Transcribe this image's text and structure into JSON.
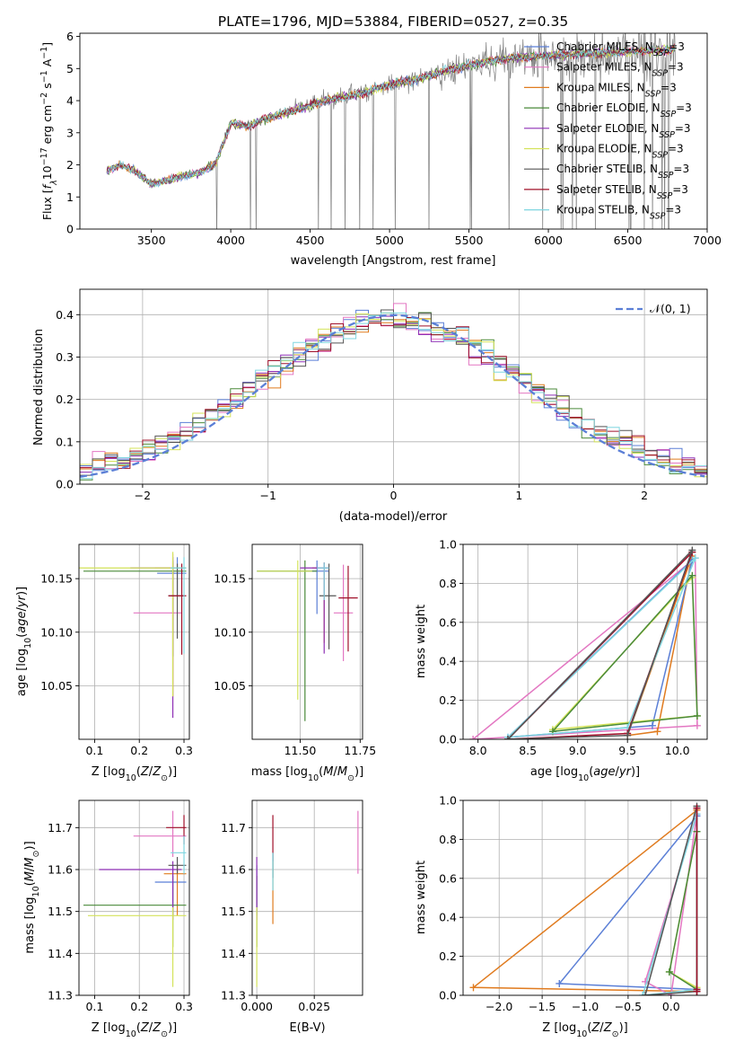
{
  "title": "PLATE=1796, MJD=53884, FIBERID=0527, z=0.35",
  "colors": {
    "chabrier_miles": "#5b7fd6",
    "salpeter_miles": "#e377c2",
    "kroupa_miles": "#e07b1f",
    "chabrier_elodie": "#4a8a3a",
    "salpeter_elodie": "#8e2fb5",
    "kroupa_elodie": "#d4e35a",
    "chabrier_stelib": "#555555",
    "salpeter_stelib": "#a0102a",
    "kroupa_stelib": "#7fd6e0",
    "normal": "#5b7fd6",
    "grid": "#b0b0b0"
  },
  "chart_data": [
    {
      "id": "spectrum",
      "type": "line",
      "xlabel": "wavelength [Angstrom, rest frame]",
      "ylabel_parts": [
        "Flux [",
        "f",
        "λ",
        "10",
        "−17",
        " erg cm",
        "−2",
        " s",
        "−1",
        " A",
        "−1",
        "]"
      ],
      "xlim": [
        3050,
        7000
      ],
      "ylim": [
        0,
        6.1
      ],
      "xticks": [
        3500,
        4000,
        4500,
        5000,
        5500,
        6000,
        6500,
        7000
      ],
      "yticks": [
        0,
        1,
        2,
        3,
        4,
        5,
        6
      ],
      "grid": false,
      "legend_position": "top-right",
      "series": [
        {
          "name": "Chabrier MILES",
          "sub": "SSP",
          "suffix": "=3",
          "color": "#5b7fd6"
        },
        {
          "name": "Salpeter MILES",
          "sub": "SSP",
          "suffix": "=3",
          "color": "#e377c2"
        },
        {
          "name": "Kroupa MILES",
          "sub": "SSP",
          "suffix": "=3",
          "color": "#e07b1f"
        },
        {
          "name": "Chabrier ELODIE",
          "sub": "SSP",
          "suffix": "=3",
          "color": "#4a8a3a"
        },
        {
          "name": "Salpeter ELODIE",
          "sub": "SSP",
          "suffix": "=3",
          "color": "#8e2fb5"
        },
        {
          "name": "Kroupa ELODIE",
          "sub": "SSP",
          "suffix": "=3",
          "color": "#d4e35a"
        },
        {
          "name": "Chabrier STELIB",
          "sub": "SSP",
          "suffix": "=3",
          "color": "#555555"
        },
        {
          "name": "Salpeter STELIB",
          "sub": "SSP",
          "suffix": "=3",
          "color": "#a0102a"
        },
        {
          "name": "Kroupa STELIB",
          "sub": "SSP",
          "suffix": "=3",
          "color": "#7fd6e0"
        }
      ],
      "continuum": {
        "x": [
          3220,
          3300,
          3400,
          3500,
          3600,
          3700,
          3800,
          3900,
          4000,
          4100,
          4200,
          4400,
          4600,
          4800,
          5000,
          5200,
          5400,
          5600,
          5800,
          6000,
          6200,
          6400,
          6600,
          6800
        ],
        "y": [
          1.85,
          2.0,
          1.8,
          1.4,
          1.5,
          1.65,
          1.75,
          2.0,
          3.3,
          3.2,
          3.4,
          3.7,
          4.0,
          4.2,
          4.5,
          4.7,
          5.0,
          5.2,
          5.35,
          5.4,
          5.45,
          5.5,
          5.55,
          5.6
        ]
      },
      "data_noise": {
        "x_range": [
          3220,
          6800
        ],
        "sigma_min": 0.15,
        "sigma_max": 1.3
      }
    },
    {
      "id": "residuals",
      "type": "histogram",
      "xlabel": "(data-model)/error",
      "ylabel": "Normed distribution",
      "xlim": [
        -2.5,
        2.5
      ],
      "ylim": [
        0,
        0.46
      ],
      "xticks": [
        -2,
        -1,
        0,
        1,
        2
      ],
      "xtick_labels": [
        "−2",
        "−1",
        "0",
        "1",
        "2"
      ],
      "yticks": [
        0.0,
        0.1,
        0.2,
        0.3,
        0.4
      ],
      "ytick_labels": [
        "0.0",
        "0.1",
        "0.2",
        "0.3",
        "0.4"
      ],
      "grid": true,
      "legend_position": "top-right",
      "legend": [
        "𝒩(0, 1)"
      ],
      "bin_width": 0.1
    },
    {
      "id": "age_vs_Z",
      "type": "errorbar",
      "xlabel": "Z [log10(Z/Z⊙)]",
      "ylabel": "age [log10(age/yr)]",
      "xlim": [
        0.065,
        0.312
      ],
      "ylim": [
        10.0,
        10.182
      ],
      "xticks": [
        0.1,
        0.2,
        0.3
      ],
      "xtick_labels": [
        "0.1",
        "0.2",
        "0.3"
      ],
      "yticks": [
        10.05,
        10.1,
        10.15
      ],
      "ytick_labels": [
        "10.05",
        "10.10",
        "10.15"
      ],
      "grid": true,
      "points": [
        {
          "series": "Chabrier MILES",
          "x": 0.285,
          "y": 10.155,
          "xerr": [
            0.045,
            0.02
          ],
          "yerr": [
            0.02,
            0.015
          ]
        },
        {
          "series": "Salpeter MILES",
          "x": 0.275,
          "y": 10.118,
          "xerr": [
            0.088,
            0.02
          ],
          "yerr": [
            0.04,
            0.055
          ]
        },
        {
          "series": "Kroupa MILES",
          "x": 0.275,
          "y": 10.16,
          "xerr": [
            0.04,
            0.03
          ],
          "yerr": [
            0.12,
            0.005
          ]
        },
        {
          "series": "Chabrier ELODIE",
          "x": 0.275,
          "y": 10.157,
          "xerr": [
            0.2,
            0.03
          ],
          "yerr": [
            0.08,
            0.01
          ]
        },
        {
          "series": "Salpeter ELODIE",
          "x": 0.275,
          "y": 10.16,
          "xerr": [
            0.095,
            0.03
          ],
          "yerr": [
            0.14,
            0.01
          ]
        },
        {
          "series": "Kroupa ELODIE",
          "x": 0.275,
          "y": 10.16,
          "xerr": [
            0.21,
            0.03
          ],
          "yerr": [
            0.12,
            0.015
          ]
        },
        {
          "series": "Chabrier STELIB",
          "x": 0.285,
          "y": 10.134,
          "xerr": [
            0.02,
            0.015
          ],
          "yerr": [
            0.04,
            0.03
          ]
        },
        {
          "series": "Salpeter STELIB",
          "x": 0.295,
          "y": 10.134,
          "xerr": [
            0.03,
            0.01
          ],
          "yerr": [
            0.055,
            0.03
          ]
        },
        {
          "series": "Kroupa STELIB",
          "x": 0.3,
          "y": 10.16,
          "xerr": [
            0.03,
            0.005
          ],
          "yerr": [
            0.08,
            0.01
          ]
        }
      ]
    },
    {
      "id": "age_vs_mass",
      "type": "errorbar",
      "xlabel": "mass [log10(M/M⊙)]",
      "xlim": [
        11.3,
        11.76
      ],
      "ylim": [
        10.0,
        10.182
      ],
      "xticks": [
        11.5,
        11.75
      ],
      "xtick_labels": [
        "11.50",
        "11.75"
      ],
      "yticks": [
        10.05,
        10.1,
        10.15
      ],
      "ytick_labels": [
        "10.05",
        "10.10",
        "10.15"
      ],
      "grid": true,
      "points": [
        {
          "series": "Chabrier MILES",
          "x": 11.57,
          "y": 10.157,
          "xerr": [
            0.25,
            0.05
          ],
          "yerr": [
            0.04,
            0.01
          ]
        },
        {
          "series": "Salpeter MILES",
          "x": 11.68,
          "y": 10.118,
          "xerr": [
            0.04,
            0.04
          ],
          "yerr": [
            0.045,
            0.045
          ]
        },
        {
          "series": "Kroupa MILES",
          "x": 11.6,
          "y": 10.16,
          "xerr": [
            0.05,
            0.02
          ],
          "yerr": [
            0.07,
            0.005
          ]
        },
        {
          "series": "Chabrier ELODIE",
          "x": 11.52,
          "y": 10.157,
          "xerr": [
            0.2,
            0.05
          ],
          "yerr": [
            0.14,
            0.01
          ]
        },
        {
          "series": "Salpeter ELODIE",
          "x": 11.6,
          "y": 10.16,
          "xerr": [
            0.1,
            0.02
          ],
          "yerr": [
            0.08,
            0.005
          ]
        },
        {
          "series": "Kroupa ELODIE",
          "x": 11.49,
          "y": 10.157,
          "xerr": [
            0.17,
            0.06
          ],
          "yerr": [
            0.12,
            0.01
          ]
        },
        {
          "series": "Chabrier STELIB",
          "x": 11.62,
          "y": 10.134,
          "xerr": [
            0.04,
            0.03
          ],
          "yerr": [
            0.05,
            0.03
          ]
        },
        {
          "series": "Salpeter STELIB",
          "x": 11.7,
          "y": 10.132,
          "xerr": [
            0.04,
            0.04
          ],
          "yerr": [
            0.05,
            0.03
          ]
        },
        {
          "series": "Kroupa STELIB",
          "x": 11.6,
          "y": 10.16,
          "xerr": [
            0.03,
            0.02
          ],
          "yerr": [
            0.03,
            0.005
          ]
        }
      ]
    },
    {
      "id": "weight_vs_age",
      "type": "line",
      "xlabel": "age [log10(age/yr)]",
      "ylabel": "mass weight",
      "xlim": [
        7.85,
        10.3
      ],
      "ylim": [
        0,
        1
      ],
      "xticks": [
        8.0,
        8.5,
        9.0,
        9.5,
        10.0
      ],
      "xtick_labels": [
        "8.0",
        "8.5",
        "9.0",
        "9.5",
        "10.0"
      ],
      "yticks": [
        0,
        0.2,
        0.4,
        0.6,
        0.8,
        1.0
      ],
      "ytick_labels": [
        "0.0",
        "0.2",
        "0.4",
        "0.6",
        "0.8",
        "1.0"
      ],
      "grid": true,
      "series": [
        {
          "series": "Salpeter MILES",
          "x": [
            7.95,
            10.18,
            10.2
          ],
          "y": [
            0.0,
            0.93,
            0.07
          ]
        },
        {
          "series": "Kroupa MILES",
          "x": [
            9.5,
            9.8,
            10.15
          ],
          "y": [
            0.02,
            0.04,
            0.94
          ]
        },
        {
          "series": "Chabrier MILES",
          "x": [
            8.3,
            9.75,
            10.15
          ],
          "y": [
            0.01,
            0.07,
            0.92
          ]
        },
        {
          "series": "Kroupa ELODIE",
          "x": [
            8.75,
            10.15,
            10.2
          ],
          "y": [
            0.05,
            0.83,
            0.12
          ]
        },
        {
          "series": "Chabrier ELODIE",
          "x": [
            8.75,
            10.15,
            10.2
          ],
          "y": [
            0.04,
            0.84,
            0.12
          ]
        },
        {
          "series": "Kroupa STELIB",
          "x": [
            8.3,
            9.5,
            10.18
          ],
          "y": [
            0.01,
            0.06,
            0.93
          ]
        },
        {
          "series": "Salpeter STELIB",
          "x": [
            8.3,
            9.5,
            10.15
          ],
          "y": [
            0.0,
            0.03,
            0.96
          ]
        },
        {
          "series": "Chabrier STELIB",
          "x": [
            8.3,
            9.5,
            10.15
          ],
          "y": [
            0.0,
            0.02,
            0.97
          ]
        }
      ]
    },
    {
      "id": "mass_vs_Z",
      "type": "errorbar",
      "xlabel": "Z [log10(Z/Z⊙)]",
      "ylabel": "mass [log10(M/M⊙)]",
      "xlim": [
        0.065,
        0.312
      ],
      "ylim": [
        11.3,
        11.765
      ],
      "xticks": [
        0.1,
        0.2,
        0.3
      ],
      "xtick_labels": [
        "0.1",
        "0.2",
        "0.3"
      ],
      "yticks": [
        11.3,
        11.4,
        11.5,
        11.6,
        11.7
      ],
      "ytick_labels": [
        "11.3",
        "11.4",
        "11.5",
        "11.6",
        "11.7"
      ],
      "grid": true,
      "points": [
        {
          "series": "Chabrier MILES",
          "x": 0.275,
          "y": 11.57,
          "xerr": [
            0.04,
            0.03
          ],
          "yerr": [
            0.08,
            0.04
          ]
        },
        {
          "series": "Salpeter MILES",
          "x": 0.275,
          "y": 11.68,
          "xerr": [
            0.088,
            0.03
          ],
          "yerr": [
            0.05,
            0.06
          ]
        },
        {
          "series": "Kroupa MILES",
          "x": 0.285,
          "y": 11.59,
          "xerr": [
            0.03,
            0.02
          ],
          "yerr": [
            0.1,
            0.02
          ]
        },
        {
          "series": "Chabrier ELODIE",
          "x": 0.275,
          "y": 11.515,
          "xerr": [
            0.2,
            0.03
          ],
          "yerr": [
            0.1,
            0.07
          ]
        },
        {
          "series": "Salpeter ELODIE",
          "x": 0.275,
          "y": 11.6,
          "xerr": [
            0.165,
            0.02
          ],
          "yerr": [
            0.12,
            0.02
          ]
        },
        {
          "series": "Kroupa ELODIE",
          "x": 0.275,
          "y": 11.49,
          "xerr": [
            0.19,
            0.03
          ],
          "yerr": [
            0.17,
            0.02
          ]
        },
        {
          "series": "Chabrier STELIB",
          "x": 0.285,
          "y": 11.61,
          "xerr": [
            0.02,
            0.02
          ],
          "yerr": [
            0.02,
            0.02
          ]
        },
        {
          "series": "Salpeter STELIB",
          "x": 0.3,
          "y": 11.7,
          "xerr": [
            0.04,
            0.005
          ],
          "yerr": [
            0.04,
            0.03
          ]
        },
        {
          "series": "Kroupa STELIB",
          "x": 0.3,
          "y": 11.64,
          "xerr": [
            0.03,
            0.005
          ],
          "yerr": [
            0.05,
            0.04
          ]
        }
      ]
    },
    {
      "id": "mass_vs_ebv",
      "type": "errorbar",
      "xlabel": "E(B-V)",
      "xlim": [
        -0.002,
        0.046
      ],
      "ylim": [
        11.3,
        11.765
      ],
      "xticks": [
        0.0,
        0.025
      ],
      "xtick_labels": [
        "0.000",
        "0.025"
      ],
      "yticks": [
        11.3,
        11.4,
        11.5,
        11.6,
        11.7
      ],
      "ytick_labels": [
        "11.3",
        "11.4",
        "11.5",
        "11.6",
        "11.7"
      ],
      "grid": true,
      "points": [
        {
          "series": "Chabrier MILES",
          "x": 0.0,
          "y": 11.57,
          "xerr": [
            0,
            0
          ],
          "yerr": [
            0.08,
            0.04
          ]
        },
        {
          "series": "Salpeter MILES",
          "x": 0.044,
          "y": 11.68,
          "xerr": [
            0,
            0
          ],
          "yerr": [
            0.09,
            0.06
          ]
        },
        {
          "series": "Kroupa MILES",
          "x": 0.007,
          "y": 11.59,
          "xerr": [
            0,
            0
          ],
          "yerr": [
            0.12,
            0.03
          ]
        },
        {
          "series": "Chabrier ELODIE",
          "x": 0.0,
          "y": 11.515,
          "xerr": [
            0,
            0
          ],
          "yerr": [
            0.1,
            0.07
          ]
        },
        {
          "series": "Salpeter ELODIE",
          "x": 0.0,
          "y": 11.6,
          "xerr": [
            0,
            0
          ],
          "yerr": [
            0.12,
            0.03
          ]
        },
        {
          "series": "Kroupa ELODIE",
          "x": 0.0,
          "y": 11.49,
          "xerr": [
            0,
            0
          ],
          "yerr": [
            0.17,
            0.02
          ]
        },
        {
          "series": "Chabrier STELIB",
          "x": 0.007,
          "y": 11.61,
          "xerr": [
            0,
            0
          ],
          "yerr": [
            0.03,
            0.03
          ]
        },
        {
          "series": "Salpeter STELIB",
          "x": 0.007,
          "y": 11.67,
          "xerr": [
            0,
            0
          ],
          "yerr": [
            0.05,
            0.06
          ]
        },
        {
          "series": "Kroupa STELIB",
          "x": 0.007,
          "y": 11.6,
          "xerr": [
            0,
            0
          ],
          "yerr": [
            0.05,
            0.04
          ]
        }
      ]
    },
    {
      "id": "weight_vs_Z",
      "type": "line",
      "xlabel": "Z [log10(Z/Z⊙)]",
      "ylabel": "mass weight",
      "xlim": [
        -2.42,
        0.42
      ],
      "ylim": [
        0,
        1
      ],
      "xticks": [
        -2.0,
        -1.5,
        -1.0,
        -0.5,
        0.0
      ],
      "xtick_labels": [
        "−2.0",
        "−1.5",
        "−1.0",
        "−0.5",
        "0.0"
      ],
      "yticks": [
        0,
        0.2,
        0.4,
        0.6,
        0.8,
        1.0
      ],
      "ytick_labels": [
        "0.0",
        "0.2",
        "0.4",
        "0.6",
        "0.8",
        "1.0"
      ],
      "grid": true,
      "series": [
        {
          "series": "Kroupa MILES",
          "x": [
            -2.3,
            0.3,
            0.3
          ],
          "y": [
            0.04,
            0.95,
            0.02
          ]
        },
        {
          "series": "Chabrier MILES",
          "x": [
            -1.3,
            0.3,
            0.3
          ],
          "y": [
            0.06,
            0.92,
            0.03
          ]
        },
        {
          "series": "Salpeter MILES",
          "x": [
            -0.3,
            0.0,
            0.3
          ],
          "y": [
            0.07,
            0.0,
            0.93
          ]
        },
        {
          "series": "Kroupa ELODIE",
          "x": [
            -0.02,
            0.3,
            0.3
          ],
          "y": [
            0.12,
            0.04,
            0.84
          ]
        },
        {
          "series": "Chabrier ELODIE",
          "x": [
            -0.02,
            0.3,
            0.3
          ],
          "y": [
            0.12,
            0.03,
            0.84
          ]
        },
        {
          "series": "Kroupa STELIB",
          "x": [
            -0.33,
            0.3,
            0.3
          ],
          "y": [
            0.0,
            0.93,
            0.03
          ]
        },
        {
          "series": "Chabrier STELIB",
          "x": [
            -0.3,
            0.3,
            0.3
          ],
          "y": [
            0.0,
            0.97,
            0.02
          ]
        },
        {
          "series": "Salpeter STELIB",
          "x": [
            0.3,
            0.3,
            0.3
          ],
          "y": [
            0.96,
            0.02,
            0.03
          ]
        }
      ]
    }
  ]
}
